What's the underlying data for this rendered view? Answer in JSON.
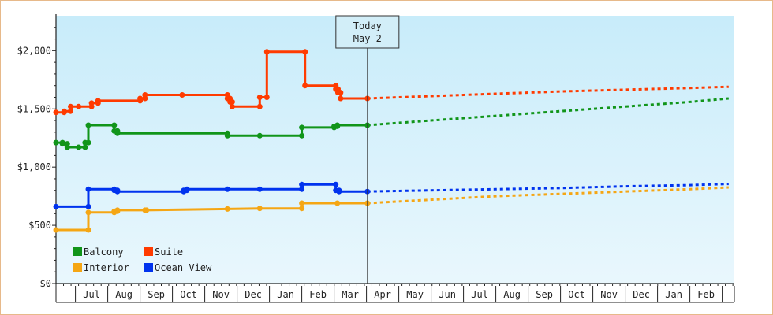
{
  "chart_data": {
    "type": "line",
    "title": "",
    "xlabel": "",
    "ylabel": "",
    "ylim": [
      0,
      2300
    ],
    "y_ticks": [
      {
        "value": 0,
        "label": "$0"
      },
      {
        "value": 500,
        "label": "$500"
      },
      {
        "value": 1000,
        "label": "$1,000"
      },
      {
        "value": 1500,
        "label": "$1,500"
      },
      {
        "value": 2000,
        "label": "$2,000"
      }
    ],
    "x_start_month": 0.4,
    "x_end_month": 21.2,
    "month_labels": [
      "Jul",
      "Aug",
      "Sep",
      "Oct",
      "Nov",
      "Dec",
      "Jan",
      "Feb",
      "Mar",
      "Apr",
      "May",
      "Jun",
      "Jul",
      "Aug",
      "Sep",
      "Oct",
      "Nov",
      "Dec",
      "Jan",
      "Feb"
    ],
    "today_month": 10.03,
    "today": {
      "line1": "Today",
      "line2": "May 2"
    },
    "grid": false,
    "legend_placement": "bottom-left",
    "colors": {
      "plot_top": "#c8ecfa",
      "plot_bottom": "#e9f7fd",
      "axis": "#222222"
    },
    "series": [
      {
        "name": "Suite",
        "color": "#ff3b00",
        "points": [
          [
            0.4,
            1470
          ],
          [
            0.65,
            1470
          ],
          [
            0.65,
            1480
          ],
          [
            0.85,
            1480
          ],
          [
            0.85,
            1520
          ],
          [
            1.1,
            1520
          ],
          [
            1.5,
            1520
          ],
          [
            1.5,
            1550
          ],
          [
            1.7,
            1550
          ],
          [
            1.7,
            1570
          ],
          [
            3.0,
            1570
          ],
          [
            3.0,
            1590
          ],
          [
            3.15,
            1590
          ],
          [
            3.15,
            1620
          ],
          [
            4.3,
            1620
          ],
          [
            5.7,
            1620
          ],
          [
            5.7,
            1590
          ],
          [
            5.78,
            1590
          ],
          [
            5.78,
            1560
          ],
          [
            5.85,
            1560
          ],
          [
            5.85,
            1520
          ],
          [
            6.7,
            1520
          ],
          [
            6.7,
            1600
          ],
          [
            6.92,
            1600
          ],
          [
            6.92,
            1990
          ],
          [
            8.1,
            1990
          ],
          [
            8.1,
            1700
          ],
          [
            9.05,
            1700
          ],
          [
            9.05,
            1670
          ],
          [
            9.12,
            1670
          ],
          [
            9.12,
            1640
          ],
          [
            9.2,
            1640
          ],
          [
            9.2,
            1590
          ],
          [
            10.03,
            1590
          ]
        ],
        "projection": [
          [
            10.03,
            1590
          ],
          [
            12,
            1610
          ],
          [
            14,
            1630
          ],
          [
            16,
            1650
          ],
          [
            18,
            1665
          ],
          [
            20,
            1680
          ],
          [
            21.2,
            1690
          ]
        ]
      },
      {
        "name": "Balcony",
        "color": "#11951a",
        "points": [
          [
            0.4,
            1210
          ],
          [
            0.6,
            1210
          ],
          [
            0.6,
            1200
          ],
          [
            0.75,
            1200
          ],
          [
            0.75,
            1170
          ],
          [
            1.1,
            1170
          ],
          [
            1.3,
            1170
          ],
          [
            1.3,
            1210
          ],
          [
            1.4,
            1210
          ],
          [
            1.4,
            1360
          ],
          [
            2.2,
            1360
          ],
          [
            2.2,
            1310
          ],
          [
            2.3,
            1310
          ],
          [
            2.3,
            1290
          ],
          [
            5.7,
            1290
          ],
          [
            5.7,
            1270
          ],
          [
            6.7,
            1270
          ],
          [
            8.0,
            1270
          ],
          [
            8.0,
            1340
          ],
          [
            9.0,
            1340
          ],
          [
            9.0,
            1350
          ],
          [
            9.1,
            1350
          ],
          [
            9.1,
            1360
          ],
          [
            10.03,
            1360
          ]
        ],
        "projection": [
          [
            10.03,
            1360
          ],
          [
            12,
            1400
          ],
          [
            14,
            1440
          ],
          [
            16,
            1480
          ],
          [
            18,
            1520
          ],
          [
            20,
            1560
          ],
          [
            21.2,
            1590
          ]
        ]
      },
      {
        "name": "Ocean View",
        "color": "#0033ee",
        "points": [
          [
            0.4,
            660
          ],
          [
            1.4,
            660
          ],
          [
            1.4,
            810
          ],
          [
            2.2,
            810
          ],
          [
            2.2,
            800
          ],
          [
            2.3,
            800
          ],
          [
            2.3,
            790
          ],
          [
            4.35,
            790
          ],
          [
            4.35,
            800
          ],
          [
            4.45,
            800
          ],
          [
            4.45,
            810
          ],
          [
            5.7,
            810
          ],
          [
            6.7,
            810
          ],
          [
            8.0,
            810
          ],
          [
            8.0,
            850
          ],
          [
            9.05,
            850
          ],
          [
            9.05,
            800
          ],
          [
            9.15,
            800
          ],
          [
            9.15,
            790
          ],
          [
            10.03,
            790
          ]
        ],
        "projection": [
          [
            10.03,
            790
          ],
          [
            12,
            800
          ],
          [
            14,
            810
          ],
          [
            16,
            820
          ],
          [
            18,
            835
          ],
          [
            20,
            845
          ],
          [
            21.2,
            855
          ]
        ]
      },
      {
        "name": "Interior",
        "color": "#f5a614",
        "points": [
          [
            0.4,
            460
          ],
          [
            1.4,
            460
          ],
          [
            1.4,
            610
          ],
          [
            2.2,
            610
          ],
          [
            2.2,
            620
          ],
          [
            2.3,
            620
          ],
          [
            2.3,
            630
          ],
          [
            3.15,
            630
          ],
          [
            3.2,
            630
          ],
          [
            5.7,
            640
          ],
          [
            6.7,
            645
          ],
          [
            8.0,
            645
          ],
          [
            8.0,
            690
          ],
          [
            9.1,
            690
          ],
          [
            10.03,
            690
          ]
        ],
        "projection": [
          [
            10.03,
            690
          ],
          [
            12,
            720
          ],
          [
            14,
            750
          ],
          [
            16,
            770
          ],
          [
            18,
            790
          ],
          [
            20,
            810
          ],
          [
            21.2,
            825
          ]
        ]
      }
    ],
    "legend": [
      {
        "label": "Balcony",
        "color": "#11951a"
      },
      {
        "label": "Suite",
        "color": "#ff3b00"
      },
      {
        "label": "Interior",
        "color": "#f5a614"
      },
      {
        "label": "Ocean View",
        "color": "#0033ee"
      }
    ]
  }
}
